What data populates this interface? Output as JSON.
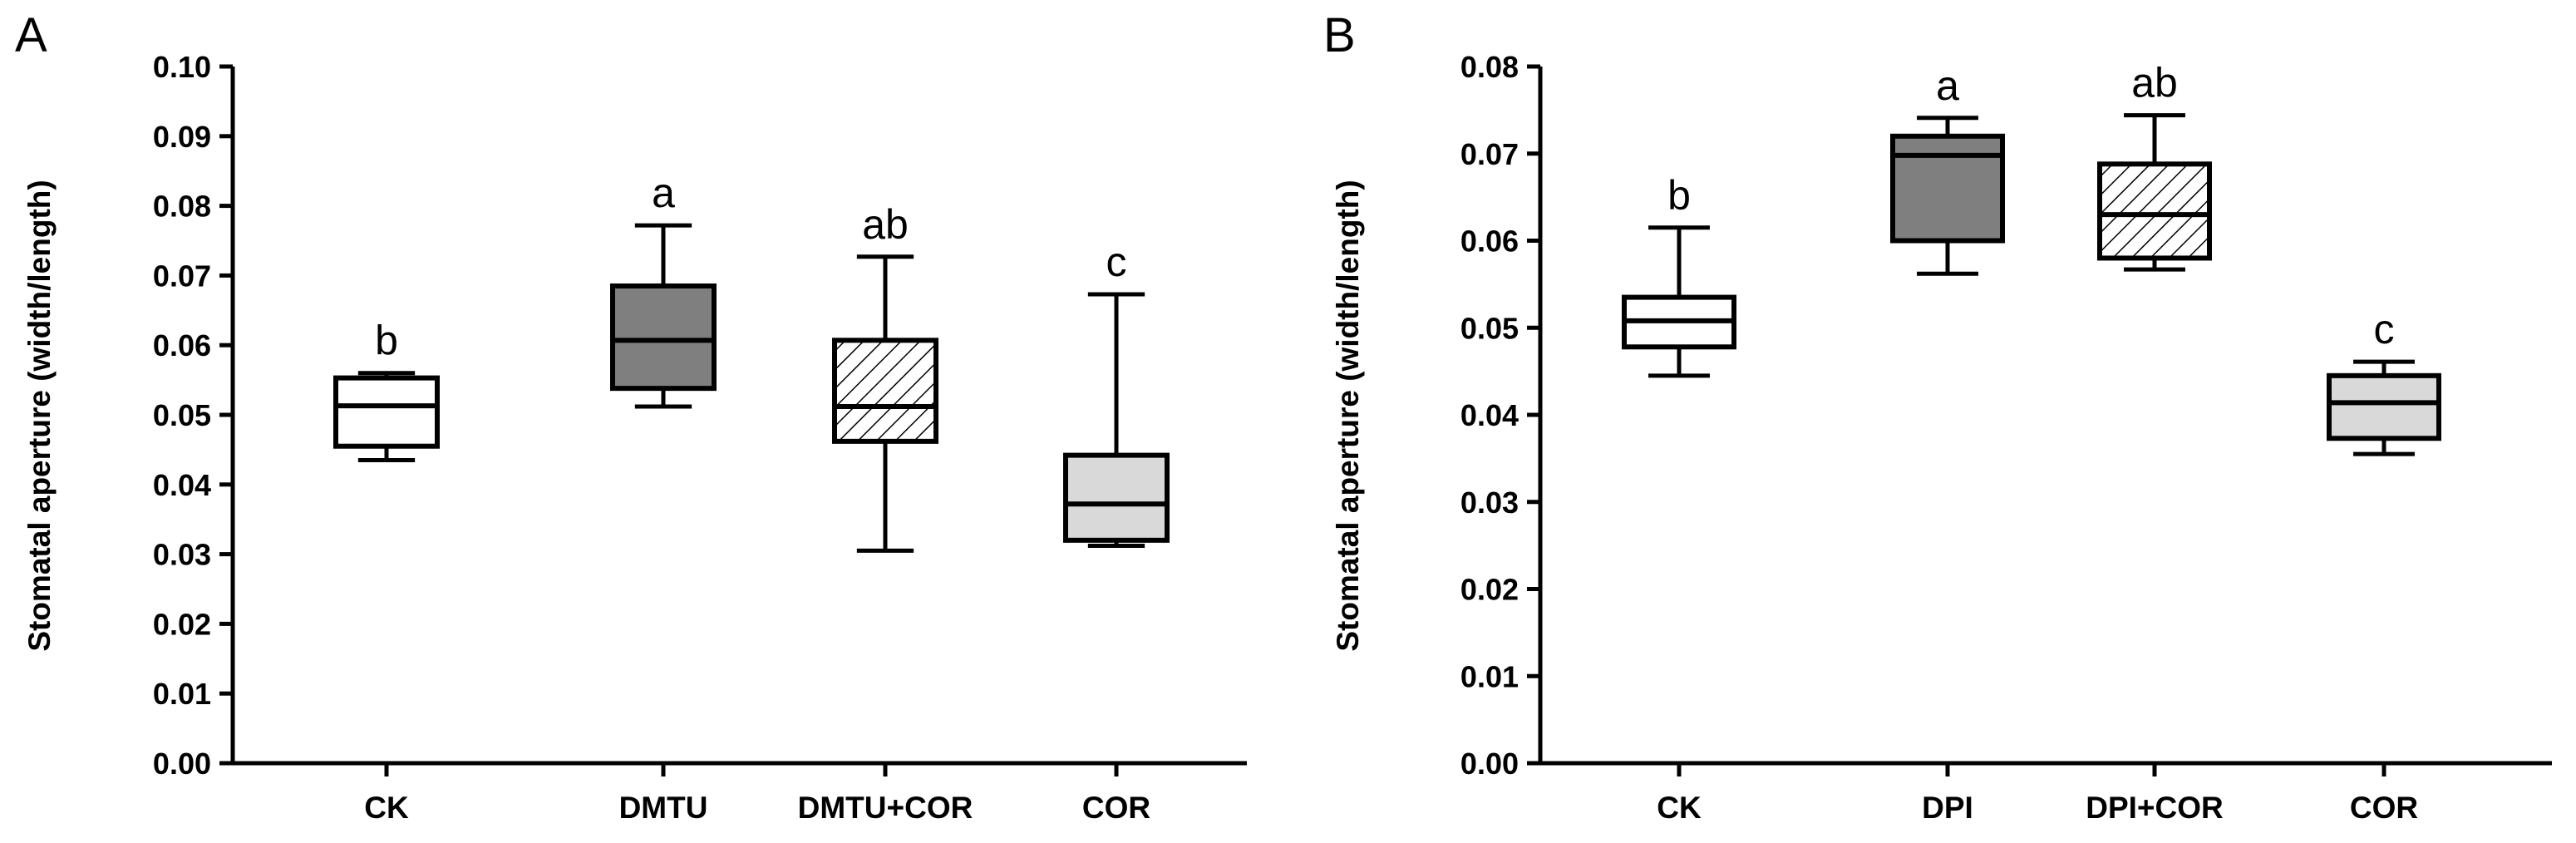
{
  "chart_data": [
    {
      "panel": "A",
      "type": "box",
      "ylabel": "Stomatal aperture (width/length)",
      "ylim": [
        0,
        0.1
      ],
      "yticks": [
        "0.00",
        "0.01",
        "0.02",
        "0.03",
        "0.04",
        "0.05",
        "0.06",
        "0.07",
        "0.08",
        "0.09",
        "0.10"
      ],
      "categories": [
        "CK",
        "DMTU",
        "DMTU+COR",
        "COR"
      ],
      "series": [
        {
          "name": "CK",
          "min": 0.0435,
          "q1": 0.0455,
          "median": 0.0513,
          "q3": 0.0553,
          "max": 0.056,
          "fill": "#ffffff",
          "pattern": "none",
          "significance": "b"
        },
        {
          "name": "DMTU",
          "min": 0.0512,
          "q1": 0.0538,
          "median": 0.0607,
          "q3": 0.0685,
          "max": 0.0772,
          "fill": "#7f7f7f",
          "pattern": "none",
          "significance": "a"
        },
        {
          "name": "DMTU+COR",
          "min": 0.0305,
          "q1": 0.0462,
          "median": 0.0512,
          "q3": 0.0607,
          "max": 0.0727,
          "fill": "#ffffff",
          "pattern": "hatch",
          "significance": "ab"
        },
        {
          "name": "COR",
          "min": 0.0312,
          "q1": 0.032,
          "median": 0.0372,
          "q3": 0.0442,
          "max": 0.0673,
          "fill": "#d9d9d9",
          "pattern": "none",
          "significance": "c"
        }
      ]
    },
    {
      "panel": "B",
      "type": "box",
      "ylabel": "Stomatal aperture (width/length)",
      "ylim": [
        0,
        0.08
      ],
      "yticks": [
        "0.00",
        "0.01",
        "0.02",
        "0.03",
        "0.04",
        "0.05",
        "0.06",
        "0.07",
        "0.08"
      ],
      "categories": [
        "CK",
        "DPI",
        "DPI+COR",
        "COR"
      ],
      "series": [
        {
          "name": "CK",
          "min": 0.0445,
          "q1": 0.0478,
          "median": 0.0508,
          "q3": 0.0535,
          "max": 0.0615,
          "fill": "#ffffff",
          "pattern": "none",
          "significance": "b"
        },
        {
          "name": "DPI",
          "min": 0.0562,
          "q1": 0.06,
          "median": 0.0698,
          "q3": 0.072,
          "max": 0.0741,
          "fill": "#7f7f7f",
          "pattern": "none",
          "significance": "a"
        },
        {
          "name": "DPI+COR",
          "min": 0.0567,
          "q1": 0.058,
          "median": 0.063,
          "q3": 0.0688,
          "max": 0.0744,
          "fill": "#ffffff",
          "pattern": "hatch",
          "significance": "ab"
        },
        {
          "name": "COR",
          "min": 0.0355,
          "q1": 0.0373,
          "median": 0.0414,
          "q3": 0.0445,
          "max": 0.0461,
          "fill": "#d9d9d9",
          "pattern": "none",
          "significance": "c"
        }
      ]
    }
  ]
}
